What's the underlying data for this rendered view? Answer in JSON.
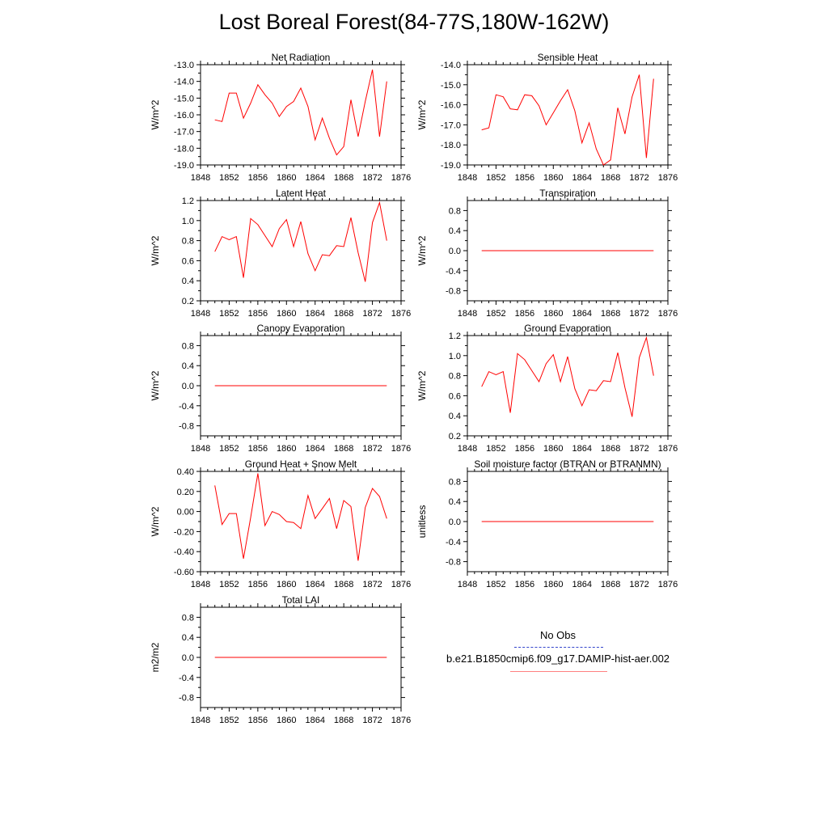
{
  "figure": {
    "title": "Lost Boreal Forest(84-77S,180W-162W)",
    "legend": {
      "obs_label": "No Obs",
      "obs_color": "#3344cc",
      "model_label": "b.e21.B1850cmip6.f09_g17.DAMIP-hist-aer.002",
      "model_color": "#ff0000"
    }
  },
  "chart_data": [
    {
      "type": "line",
      "title": "Net Radiation",
      "ylabel": "W/m^2",
      "xlim": [
        1848,
        1876
      ],
      "ylim": [
        -19.0,
        -13.0
      ],
      "xticks": [
        "1848",
        "1852",
        "1856",
        "1860",
        "1864",
        "1868",
        "1872",
        "1876"
      ],
      "yticks": [
        "-13.0",
        "-14.0",
        "-15.0",
        "-16.0",
        "-17.0",
        "-18.0",
        "-19.0"
      ],
      "x": [
        1850,
        1851,
        1852,
        1853,
        1854,
        1855,
        1856,
        1857,
        1858,
        1859,
        1860,
        1861,
        1862,
        1863,
        1864,
        1865,
        1866,
        1867,
        1868,
        1869,
        1870,
        1871,
        1872,
        1873,
        1874
      ],
      "series": [
        {
          "color": "#ff0000",
          "values": [
            -16.3,
            -16.4,
            -14.7,
            -14.7,
            -16.2,
            -15.3,
            -14.2,
            -14.8,
            -15.3,
            -16.1,
            -15.5,
            -15.2,
            -14.4,
            -15.5,
            -17.5,
            -16.2,
            -17.4,
            -18.4,
            -17.9,
            -15.1,
            -17.3,
            -15.2,
            -13.3,
            -17.3,
            -14.0
          ]
        }
      ]
    },
    {
      "type": "line",
      "title": "Sensible Heat",
      "ylabel": "W/m^2",
      "xlim": [
        1848,
        1876
      ],
      "ylim": [
        -19.0,
        -14.0
      ],
      "xticks": [
        "1848",
        "1852",
        "1856",
        "1860",
        "1864",
        "1868",
        "1872",
        "1876"
      ],
      "yticks": [
        "-14.0",
        "-15.0",
        "-16.0",
        "-17.0",
        "-18.0",
        "-19.0"
      ],
      "x": [
        1850,
        1851,
        1852,
        1853,
        1854,
        1855,
        1856,
        1857,
        1858,
        1859,
        1860,
        1861,
        1862,
        1863,
        1864,
        1865,
        1866,
        1867,
        1868,
        1869,
        1870,
        1871,
        1872,
        1873,
        1874
      ],
      "series": [
        {
          "color": "#ff0000",
          "values": [
            -17.25,
            -17.15,
            -15.5,
            -15.6,
            -16.2,
            -16.25,
            -15.5,
            -15.55,
            -16.05,
            -17.0,
            -16.4,
            -15.8,
            -15.25,
            -16.3,
            -17.9,
            -16.9,
            -18.2,
            -19.0,
            -18.75,
            -16.15,
            -17.45,
            -15.6,
            -14.5,
            -18.65,
            -14.7
          ]
        }
      ]
    },
    {
      "type": "line",
      "title": "Latent Heat",
      "ylabel": "W/m^2",
      "xlim": [
        1848,
        1876
      ],
      "ylim": [
        0.2,
        1.2
      ],
      "xticks": [
        "1848",
        "1852",
        "1856",
        "1860",
        "1864",
        "1868",
        "1872",
        "1876"
      ],
      "yticks": [
        "1.2",
        "1.0",
        "0.8",
        "0.6",
        "0.4",
        "0.2"
      ],
      "x": [
        1850,
        1851,
        1852,
        1853,
        1854,
        1855,
        1856,
        1857,
        1858,
        1859,
        1860,
        1861,
        1862,
        1863,
        1864,
        1865,
        1866,
        1867,
        1868,
        1869,
        1870,
        1871,
        1872,
        1873,
        1874
      ],
      "series": [
        {
          "color": "#ff0000",
          "values": [
            0.69,
            0.84,
            0.81,
            0.84,
            0.43,
            1.02,
            0.96,
            0.85,
            0.74,
            0.92,
            1.01,
            0.74,
            0.99,
            0.67,
            0.5,
            0.66,
            0.65,
            0.75,
            0.74,
            1.03,
            0.68,
            0.39,
            0.98,
            1.18,
            0.8
          ]
        }
      ]
    },
    {
      "type": "line",
      "title": "Transpiration",
      "ylabel": "W/m^2",
      "xlim": [
        1848,
        1876
      ],
      "ylim": [
        -1.0,
        1.0
      ],
      "xticks": [
        "1848",
        "1852",
        "1856",
        "1860",
        "1864",
        "1868",
        "1872",
        "1876"
      ],
      "yticks": [
        "0.8",
        "0.4",
        "0.0",
        "-0.4",
        "-0.8"
      ],
      "x": [
        1850,
        1874
      ],
      "series": [
        {
          "color": "#ff0000",
          "values": [
            0.0,
            0.0
          ]
        }
      ]
    },
    {
      "type": "line",
      "title": "Canopy Evaporation",
      "ylabel": "W/m^2",
      "xlim": [
        1848,
        1876
      ],
      "ylim": [
        -1.0,
        1.0
      ],
      "xticks": [
        "1848",
        "1852",
        "1856",
        "1860",
        "1864",
        "1868",
        "1872",
        "1876"
      ],
      "yticks": [
        "0.8",
        "0.4",
        "0.0",
        "-0.4",
        "-0.8"
      ],
      "x": [
        1850,
        1874
      ],
      "series": [
        {
          "color": "#ff0000",
          "values": [
            0.0,
            0.0
          ]
        }
      ]
    },
    {
      "type": "line",
      "title": "Ground Evaporation",
      "ylabel": "W/m^2",
      "xlim": [
        1848,
        1876
      ],
      "ylim": [
        0.2,
        1.2
      ],
      "xticks": [
        "1848",
        "1852",
        "1856",
        "1860",
        "1864",
        "1868",
        "1872",
        "1876"
      ],
      "yticks": [
        "1.2",
        "1.0",
        "0.8",
        "0.6",
        "0.4",
        "0.2"
      ],
      "x": [
        1850,
        1851,
        1852,
        1853,
        1854,
        1855,
        1856,
        1857,
        1858,
        1859,
        1860,
        1861,
        1862,
        1863,
        1864,
        1865,
        1866,
        1867,
        1868,
        1869,
        1870,
        1871,
        1872,
        1873,
        1874
      ],
      "series": [
        {
          "color": "#ff0000",
          "values": [
            0.69,
            0.84,
            0.81,
            0.84,
            0.43,
            1.02,
            0.96,
            0.85,
            0.74,
            0.92,
            1.01,
            0.74,
            0.99,
            0.67,
            0.5,
            0.66,
            0.65,
            0.75,
            0.74,
            1.03,
            0.68,
            0.39,
            0.98,
            1.18,
            0.8
          ]
        }
      ]
    },
    {
      "type": "line",
      "title": "Ground Heat + Snow Melt",
      "ylabel": "W/m^2",
      "xlim": [
        1848,
        1876
      ],
      "ylim": [
        -0.6,
        0.4
      ],
      "xticks": [
        "1848",
        "1852",
        "1856",
        "1860",
        "1864",
        "1868",
        "1872",
        "1876"
      ],
      "yticks": [
        "0.40",
        "0.20",
        "0.00",
        "-0.20",
        "-0.40",
        "-0.60"
      ],
      "x": [
        1850,
        1851,
        1852,
        1853,
        1854,
        1855,
        1856,
        1857,
        1858,
        1859,
        1860,
        1861,
        1862,
        1863,
        1864,
        1865,
        1866,
        1867,
        1868,
        1869,
        1870,
        1871,
        1872,
        1873,
        1874
      ],
      "series": [
        {
          "color": "#ff0000",
          "values": [
            0.26,
            -0.13,
            -0.02,
            -0.02,
            -0.47,
            -0.06,
            0.38,
            -0.14,
            0.0,
            -0.03,
            -0.1,
            -0.11,
            -0.17,
            0.16,
            -0.07,
            0.03,
            0.13,
            -0.17,
            0.11,
            0.05,
            -0.49,
            0.04,
            0.23,
            0.15,
            -0.07
          ]
        }
      ]
    },
    {
      "type": "line",
      "title": "Soil moisture factor (BTRAN or BTRANMN)",
      "ylabel": "unitless",
      "xlim": [
        1848,
        1876
      ],
      "ylim": [
        -1.0,
        1.0
      ],
      "xticks": [
        "1848",
        "1852",
        "1856",
        "1860",
        "1864",
        "1868",
        "1872",
        "1876"
      ],
      "yticks": [
        "0.8",
        "0.4",
        "0.0",
        "-0.4",
        "-0.8"
      ],
      "x": [
        1850,
        1874
      ],
      "series": [
        {
          "color": "#ff0000",
          "values": [
            0.0,
            0.0
          ]
        }
      ]
    },
    {
      "type": "line",
      "title": "Total LAI",
      "ylabel": "m2/m2",
      "xlim": [
        1848,
        1876
      ],
      "ylim": [
        -1.0,
        1.0
      ],
      "xticks": [
        "1848",
        "1852",
        "1856",
        "1860",
        "1864",
        "1868",
        "1872",
        "1876"
      ],
      "yticks": [
        "0.8",
        "0.4",
        "0.0",
        "-0.4",
        "-0.8"
      ],
      "x": [
        1850,
        1874
      ],
      "series": [
        {
          "color": "#ff0000",
          "values": [
            0.0,
            0.0
          ]
        }
      ]
    }
  ]
}
